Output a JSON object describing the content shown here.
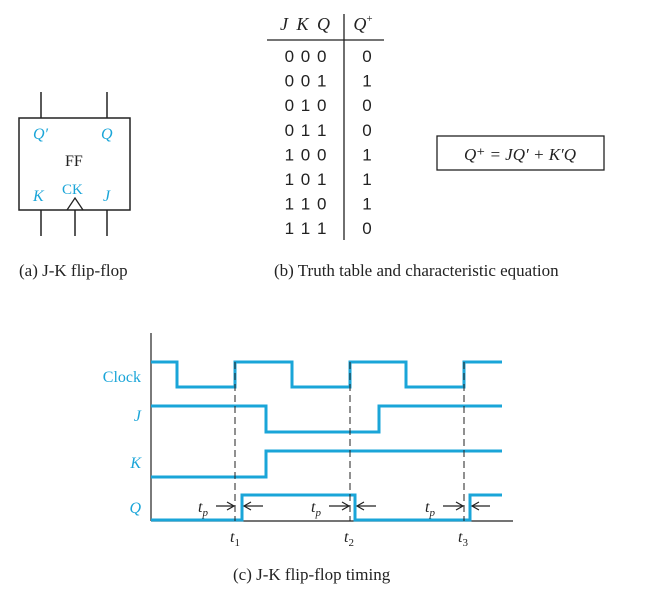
{
  "colors": {
    "accent": "#1aa5d8",
    "ink": "#222222",
    "wave": "#1aa5d8"
  },
  "flipflop": {
    "label": "FF",
    "q_bar": "Q′",
    "q": "Q",
    "k": "K",
    "ck": "CK",
    "j": "J",
    "caption": "(a) J-K flip-flop"
  },
  "truth_table": {
    "header_inputs": "J K Q",
    "header_output": "Q",
    "header_output_sup": "+",
    "rows": [
      {
        "inputs": "0 0 0",
        "output": "0"
      },
      {
        "inputs": "0 0 1",
        "output": "1"
      },
      {
        "inputs": "0 1 0",
        "output": "0"
      },
      {
        "inputs": "0 1 1",
        "output": "0"
      },
      {
        "inputs": "1 0 0",
        "output": "1"
      },
      {
        "inputs": "1 0 1",
        "output": "1"
      },
      {
        "inputs": "1 1 0",
        "output": "1"
      },
      {
        "inputs": "1 1 1",
        "output": "0"
      }
    ],
    "equation": "Q⁺ = JQ′ + K′Q",
    "caption": "(b) Truth table and characteristic equation"
  },
  "timing": {
    "signals": [
      "Clock",
      "J",
      "K",
      "Q"
    ],
    "tp_label": "t",
    "tp_sub": "p",
    "times": [
      {
        "label": "t",
        "sub": "1"
      },
      {
        "label": "t",
        "sub": "2"
      },
      {
        "label": "t",
        "sub": "3"
      }
    ],
    "caption": "(c) J-K flip-flop timing"
  }
}
